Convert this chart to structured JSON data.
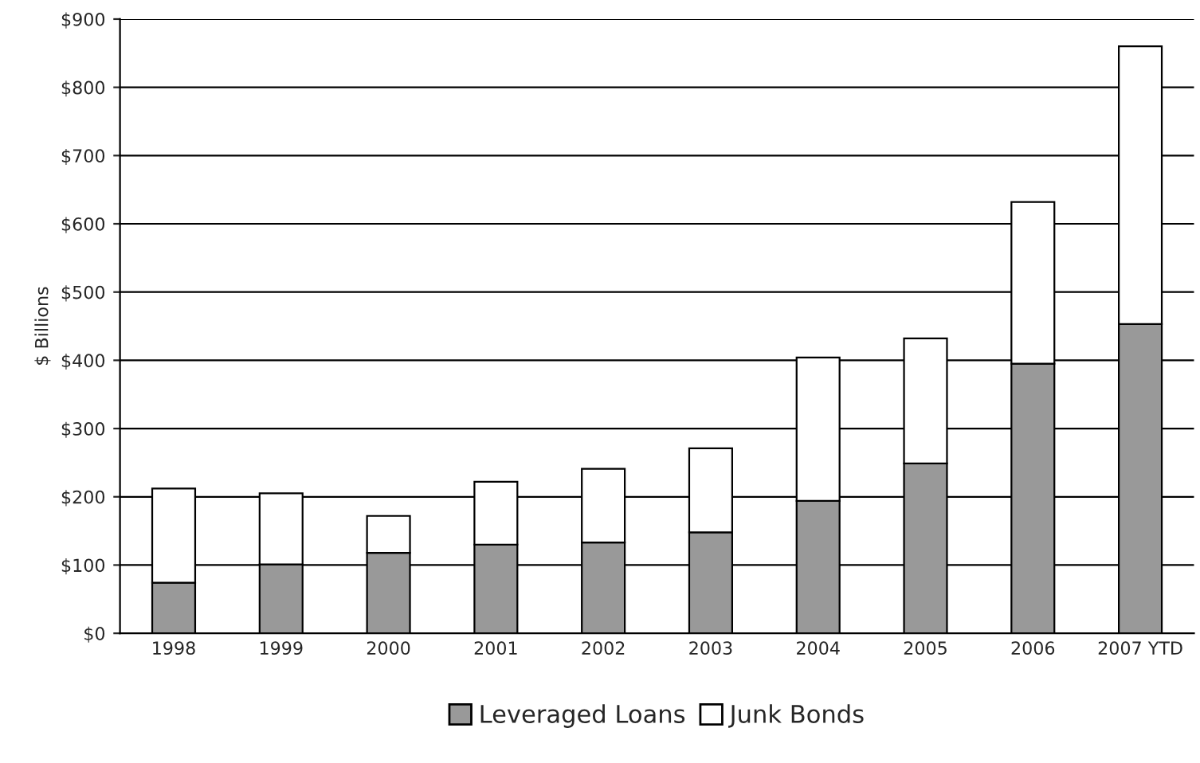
{
  "chart_data": {
    "type": "bar",
    "stacked": true,
    "ylabel": "$ Billions",
    "categories": [
      "1998",
      "1999",
      "2000",
      "2001",
      "2002",
      "2003",
      "2004",
      "2005",
      "2006",
      "2007 YTD"
    ],
    "series": [
      {
        "name": "Leveraged Loans",
        "color": "#999999",
        "values": [
          74,
          101,
          118,
          130,
          133,
          148,
          194,
          249,
          395,
          453
        ]
      },
      {
        "name": "Junk Bonds",
        "color": "#ffffff",
        "values": [
          138,
          104,
          54,
          92,
          108,
          123,
          210,
          183,
          237,
          407
        ]
      }
    ],
    "ylim": [
      0,
      900
    ],
    "yticks": [
      {
        "value": 0,
        "label": "$0"
      },
      {
        "value": 100,
        "label": "$100"
      },
      {
        "value": 200,
        "label": "$200"
      },
      {
        "value": 300,
        "label": "$300"
      },
      {
        "value": 400,
        "label": "$400"
      },
      {
        "value": 500,
        "label": "$500"
      },
      {
        "value": 600,
        "label": "$600"
      },
      {
        "value": 700,
        "label": "$700"
      },
      {
        "value": 800,
        "label": "$800"
      },
      {
        "value": 900,
        "label": "$900"
      }
    ],
    "grid": "y",
    "legend": "bottom"
  }
}
